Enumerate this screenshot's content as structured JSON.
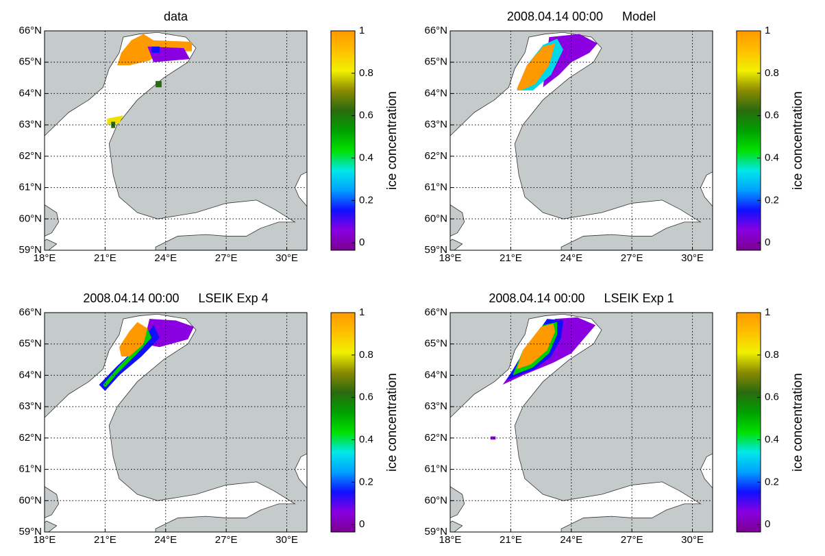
{
  "chart_data": [
    {
      "type": "map",
      "title": "data",
      "xlim": [
        18,
        31
      ],
      "ylim": [
        59,
        66
      ],
      "xticks": [
        {
          "value": 18,
          "label": "18°E"
        },
        {
          "value": 21,
          "label": "21°E"
        },
        {
          "value": 24,
          "label": "24°E"
        },
        {
          "value": 27,
          "label": "27°E"
        },
        {
          "value": 30,
          "label": "30°E"
        }
      ],
      "yticks": [
        {
          "value": 59,
          "label": "59°N"
        },
        {
          "value": 60,
          "label": "60°N"
        },
        {
          "value": 61,
          "label": "61°N"
        },
        {
          "value": 62,
          "label": "62°N"
        },
        {
          "value": 63,
          "label": "63°N"
        },
        {
          "value": 64,
          "label": "64°N"
        },
        {
          "value": 65,
          "label": "65°N"
        },
        {
          "value": 66,
          "label": "66°N"
        }
      ],
      "grid": true,
      "colorbar": {
        "label": "ice concentration",
        "clim": [
          -0.035,
          1
        ],
        "ticks": [
          0,
          0.2,
          0.4,
          0.6,
          0.8,
          1
        ],
        "colormap": [
          "#7a0090",
          "#8a00e0",
          "#1010ff",
          "#00a0ff",
          "#00e8e8",
          "#00e000",
          "#00a000",
          "#2a6a10",
          "#8a8a00",
          "#f0f000",
          "#ffc000",
          "#ff9900"
        ]
      }
    },
    {
      "type": "map",
      "date": "2008.04.14 00:00",
      "title": "Model",
      "xlim": [
        18,
        31
      ],
      "ylim": [
        59,
        66
      ],
      "xticks": [
        {
          "value": 18,
          "label": "18°E"
        },
        {
          "value": 21,
          "label": "21°E"
        },
        {
          "value": 24,
          "label": "24°E"
        },
        {
          "value": 27,
          "label": "27°E"
        },
        {
          "value": 30,
          "label": "30°E"
        }
      ],
      "yticks": [
        {
          "value": 59,
          "label": "59°N"
        },
        {
          "value": 60,
          "label": "60°N"
        },
        {
          "value": 61,
          "label": "61°N"
        },
        {
          "value": 62,
          "label": "62°N"
        },
        {
          "value": 63,
          "label": "63°N"
        },
        {
          "value": 64,
          "label": "64°N"
        },
        {
          "value": 65,
          "label": "65°N"
        },
        {
          "value": 66,
          "label": "66°N"
        }
      ],
      "grid": true,
      "colorbar": {
        "label": "ice concentration",
        "clim": [
          -0.035,
          1
        ],
        "ticks": [
          0,
          0.2,
          0.4,
          0.6,
          0.8,
          1
        ],
        "colormap": [
          "#7a0090",
          "#8a00e0",
          "#1010ff",
          "#00a0ff",
          "#00e8e8",
          "#00e000",
          "#00a000",
          "#2a6a10",
          "#8a8a00",
          "#f0f000",
          "#ffc000",
          "#ff9900"
        ]
      }
    },
    {
      "type": "map",
      "date": "2008.04.14 00:00",
      "title": "LSEIK Exp 4",
      "xlim": [
        18,
        31
      ],
      "ylim": [
        59,
        66
      ],
      "xticks": [
        {
          "value": 18,
          "label": "18°E"
        },
        {
          "value": 21,
          "label": "21°E"
        },
        {
          "value": 24,
          "label": "24°E"
        },
        {
          "value": 27,
          "label": "27°E"
        },
        {
          "value": 30,
          "label": "30°E"
        }
      ],
      "yticks": [
        {
          "value": 59,
          "label": "59°N"
        },
        {
          "value": 60,
          "label": "60°N"
        },
        {
          "value": 61,
          "label": "61°N"
        },
        {
          "value": 62,
          "label": "62°N"
        },
        {
          "value": 63,
          "label": "63°N"
        },
        {
          "value": 64,
          "label": "64°N"
        },
        {
          "value": 65,
          "label": "65°N"
        },
        {
          "value": 66,
          "label": "66°N"
        }
      ],
      "grid": true,
      "colorbar": {
        "label": "ice concentration",
        "clim": [
          -0.035,
          1
        ],
        "ticks": [
          0,
          0.2,
          0.4,
          0.6,
          0.8,
          1
        ],
        "colormap": [
          "#7a0090",
          "#8a00e0",
          "#1010ff",
          "#00a0ff",
          "#00e8e8",
          "#00e000",
          "#00a000",
          "#2a6a10",
          "#8a8a00",
          "#f0f000",
          "#ffc000",
          "#ff9900"
        ]
      }
    },
    {
      "type": "map",
      "date": "2008.04.14 00:00",
      "title": "LSEIK Exp 1",
      "xlim": [
        18,
        31
      ],
      "ylim": [
        59,
        66
      ],
      "xticks": [
        {
          "value": 18,
          "label": "18°E"
        },
        {
          "value": 21,
          "label": "21°E"
        },
        {
          "value": 24,
          "label": "24°E"
        },
        {
          "value": 27,
          "label": "27°E"
        },
        {
          "value": 30,
          "label": "30°E"
        }
      ],
      "yticks": [
        {
          "value": 59,
          "label": "59°N"
        },
        {
          "value": 60,
          "label": "60°N"
        },
        {
          "value": 61,
          "label": "61°N"
        },
        {
          "value": 62,
          "label": "62°N"
        },
        {
          "value": 63,
          "label": "63°N"
        },
        {
          "value": 64,
          "label": "64°N"
        },
        {
          "value": 65,
          "label": "65°N"
        },
        {
          "value": 66,
          "label": "66°N"
        }
      ],
      "grid": true,
      "colorbar": {
        "label": "ice concentration",
        "clim": [
          -0.035,
          1
        ],
        "ticks": [
          0,
          0.2,
          0.4,
          0.6,
          0.8,
          1
        ],
        "colormap": [
          "#7a0090",
          "#8a00e0",
          "#1010ff",
          "#00a0ff",
          "#00e8e8",
          "#00e000",
          "#00a000",
          "#2a6a10",
          "#8a8a00",
          "#f0f000",
          "#ffc000",
          "#ff9900"
        ]
      }
    }
  ]
}
